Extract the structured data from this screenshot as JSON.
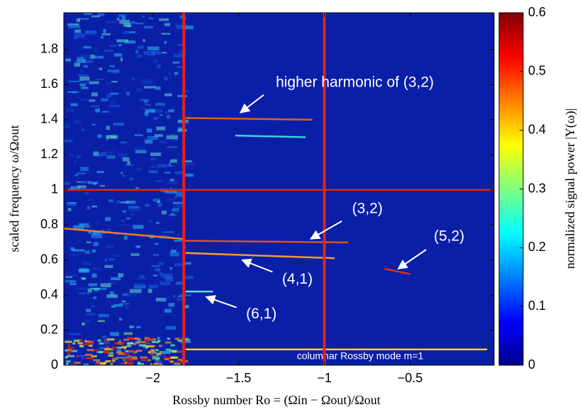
{
  "chart_data": {
    "type": "heatmap",
    "x_label": "Rossby number Ro = (Ωin − Ωout)/Ωout",
    "y_label": "scaled frequency ω/Ωout",
    "colorbar_label": "normalized signal power |Y(ω)|",
    "xlim": [
      -2.52,
      -0.01
    ],
    "ylim": [
      0,
      2.01
    ],
    "xticks": [
      -2,
      -1.5,
      -1,
      -0.5
    ],
    "yticks": [
      0,
      0.2,
      0.4,
      0.6,
      0.8,
      1,
      1.2,
      1.4,
      1.6,
      1.8
    ],
    "clim": [
      0,
      0.6
    ],
    "cticks": [
      0,
      0.1,
      0.2,
      0.3,
      0.4,
      0.5,
      0.6
    ],
    "vlines": {
      "color": "#e8201a",
      "values": [
        -1.82,
        -1.0
      ]
    },
    "ridges": [
      {
        "x": [
          -2.52,
          -0.01
        ],
        "y": [
          1.0,
          1.0
        ],
        "color": "#d42a10"
      },
      {
        "x": [
          -1.81,
          -1.07
        ],
        "y": [
          1.41,
          1.4
        ],
        "color": "#e0601a"
      },
      {
        "x": [
          -1.52,
          -1.11
        ],
        "y": [
          1.31,
          1.3
        ],
        "color": "#40d0e0"
      },
      {
        "x": [
          -2.52,
          -1.82
        ],
        "y": [
          0.78,
          0.72
        ],
        "color": "#f08020"
      },
      {
        "x": [
          -1.81,
          -0.86
        ],
        "y": [
          0.71,
          0.7
        ],
        "color": "#e05018"
      },
      {
        "x": [
          -1.81,
          -0.94
        ],
        "y": [
          0.64,
          0.61
        ],
        "color": "#f0a020"
      },
      {
        "x": [
          -0.65,
          -0.5
        ],
        "y": [
          0.55,
          0.52
        ],
        "color": "#e03010"
      },
      {
        "x": [
          -1.81,
          -0.05
        ],
        "y": [
          0.09,
          0.09
        ],
        "color": "#f0d030"
      },
      {
        "x": [
          -1.81,
          -1.65
        ],
        "y": [
          0.42,
          0.42
        ],
        "color": "#60e0e0"
      }
    ],
    "annotations": [
      {
        "text": "higher harmonic of (3,2)",
        "x": -1.49,
        "y": 1.44
      },
      {
        "text": "(3,2)",
        "x": -1.08,
        "y": 0.72
      },
      {
        "text": "(5,2)",
        "x": -0.57,
        "y": 0.55
      },
      {
        "text": "(4,1)",
        "x": -1.48,
        "y": 0.6
      },
      {
        "text": "(6,1)",
        "x": -1.69,
        "y": 0.39
      }
    ],
    "note": "columnar Rossby mode m=1"
  }
}
